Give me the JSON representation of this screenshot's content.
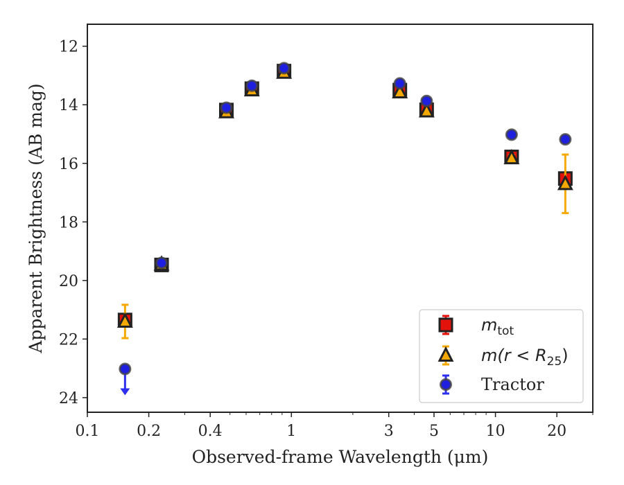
{
  "chart_data": {
    "type": "scatter",
    "xlabel": "Observed-frame Wavelength (μm)",
    "ylabel": "Apparent Brightness (AB mag)",
    "xscale": "log",
    "xlim": [
      0.1,
      30
    ],
    "ylim": [
      24.5,
      11.25
    ],
    "y_inverted": true,
    "x_ticks": [
      {
        "value": 0.1,
        "label": "0.1"
      },
      {
        "value": 0.2,
        "label": "0.2"
      },
      {
        "value": 0.4,
        "label": "0.4"
      },
      {
        "value": 1,
        "label": "1"
      },
      {
        "value": 3,
        "label": "3"
      },
      {
        "value": 5,
        "label": "5"
      },
      {
        "value": 10,
        "label": "10"
      },
      {
        "value": 20,
        "label": "20"
      }
    ],
    "y_ticks": [
      {
        "value": 12,
        "label": "12"
      },
      {
        "value": 14,
        "label": "14"
      },
      {
        "value": 16,
        "label": "16"
      },
      {
        "value": 18,
        "label": "18"
      },
      {
        "value": 20,
        "label": "20"
      },
      {
        "value": 22,
        "label": "22"
      },
      {
        "value": 24,
        "label": "24"
      }
    ],
    "legend": {
      "position": "lower-right",
      "entries": [
        {
          "series": "mtot",
          "text": "m",
          "subscript": "tot"
        },
        {
          "series": "mr25",
          "text": "m(r < R",
          "subscript": "25",
          "suffix": ")"
        },
        {
          "series": "tractor",
          "text": "Tractor"
        }
      ]
    },
    "series": [
      {
        "id": "mtot",
        "marker": "square",
        "color": "#e3120b",
        "edge_color": "#222222",
        "error_color": "#e3120b",
        "points": [
          {
            "x": 0.153,
            "y": 21.35,
            "err": 0.1
          },
          {
            "x": 0.231,
            "y": 19.47,
            "err": 0.05
          },
          {
            "x": 0.48,
            "y": 14.18,
            "err": 0.04
          },
          {
            "x": 0.64,
            "y": 13.45,
            "err": 0.04
          },
          {
            "x": 0.92,
            "y": 12.85,
            "err": 0.04
          },
          {
            "x": 3.4,
            "y": 13.5,
            "err": 0.05
          },
          {
            "x": 4.6,
            "y": 14.17,
            "err": 0.05
          },
          {
            "x": 12.0,
            "y": 15.78,
            "err": 0.1
          },
          {
            "x": 22.0,
            "y": 16.52,
            "err": 0.15
          }
        ]
      },
      {
        "id": "mr25",
        "marker": "triangle",
        "color": "#f5a800",
        "edge_color": "#222222",
        "error_color": "#f5a800",
        "points": [
          {
            "x": 0.153,
            "y": 21.4,
            "err": 0.57
          },
          {
            "x": 0.231,
            "y": 19.45,
            "err": 0.05
          },
          {
            "x": 0.48,
            "y": 14.25,
            "err": 0.05
          },
          {
            "x": 0.64,
            "y": 13.5,
            "err": 0.05
          },
          {
            "x": 0.92,
            "y": 12.9,
            "err": 0.05
          },
          {
            "x": 3.4,
            "y": 13.57,
            "err": 0.05
          },
          {
            "x": 4.6,
            "y": 14.22,
            "err": 0.05
          },
          {
            "x": 12.0,
            "y": 15.82,
            "err": 0.1
          },
          {
            "x": 22.0,
            "y": 16.7,
            "err": 1.0
          }
        ]
      },
      {
        "id": "tractor",
        "marker": "circle",
        "color": "#1f1fe0",
        "edge_color": "#444444",
        "error_color": "#2d2ff0",
        "points": [
          {
            "x": 0.153,
            "y": 23.02,
            "upper_limit": true
          },
          {
            "x": 0.231,
            "y": 19.4,
            "err": 0.05
          },
          {
            "x": 0.48,
            "y": 14.1,
            "err": 0.04
          },
          {
            "x": 0.64,
            "y": 13.35,
            "err": 0.04
          },
          {
            "x": 0.92,
            "y": 12.75,
            "err": 0.04
          },
          {
            "x": 3.4,
            "y": 13.27,
            "err": 0.04
          },
          {
            "x": 4.6,
            "y": 13.87,
            "err": 0.04
          },
          {
            "x": 12.0,
            "y": 15.02,
            "err": 0.05
          },
          {
            "x": 22.0,
            "y": 15.18,
            "err": 0.05
          }
        ]
      }
    ]
  }
}
